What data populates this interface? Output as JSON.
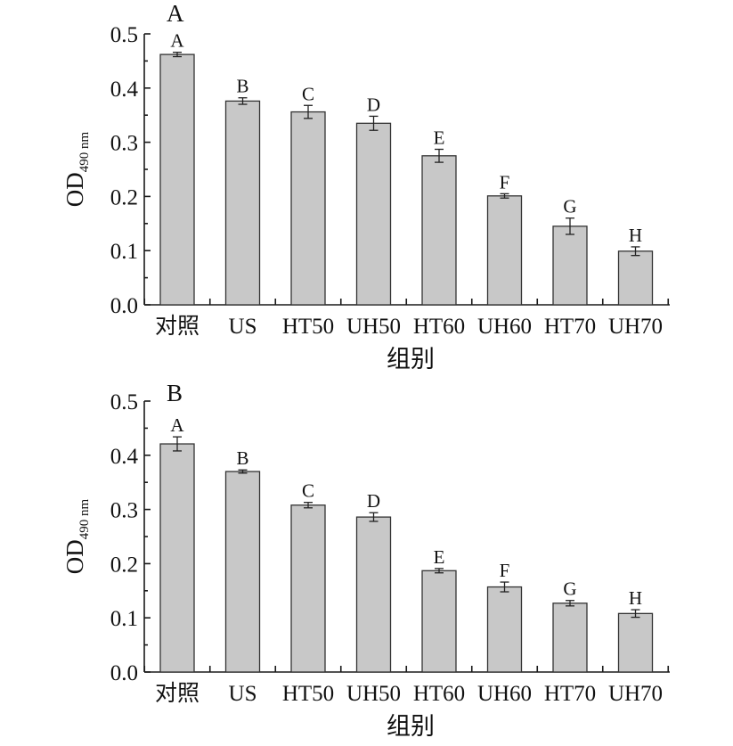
{
  "chart_data": [
    {
      "type": "bar",
      "panel_label": "A",
      "categories": [
        "对照",
        "US",
        "HT50",
        "UH50",
        "HT60",
        "UH60",
        "HT70",
        "UH70"
      ],
      "values": [
        0.462,
        0.376,
        0.356,
        0.335,
        0.275,
        0.201,
        0.145,
        0.099
      ],
      "errors": [
        0.004,
        0.006,
        0.012,
        0.013,
        0.012,
        0.004,
        0.015,
        0.008
      ],
      "significance": [
        "A",
        "B",
        "C",
        "D",
        "E",
        "F",
        "G",
        "H"
      ],
      "xlabel": "组别",
      "ylabel": {
        "main": "OD",
        "sub": "490 nm"
      },
      "ylim": [
        0,
        0.5
      ],
      "yticks": [
        "0.0",
        "0.1",
        "0.2",
        "0.3",
        "0.4",
        "0.5"
      ],
      "bar_color": "#c8c8c8",
      "grid": false
    },
    {
      "type": "bar",
      "panel_label": "B",
      "categories": [
        "对照",
        "US",
        "HT50",
        "UH50",
        "HT60",
        "UH60",
        "HT70",
        "UH70"
      ],
      "values": [
        0.421,
        0.37,
        0.308,
        0.286,
        0.187,
        0.157,
        0.127,
        0.108
      ],
      "errors": [
        0.013,
        0.003,
        0.005,
        0.008,
        0.004,
        0.009,
        0.005,
        0.007
      ],
      "significance": [
        "A",
        "B",
        "C",
        "D",
        "E",
        "F",
        "G",
        "H"
      ],
      "xlabel": "组别",
      "ylabel": {
        "main": "OD",
        "sub": "490 nm"
      },
      "ylim": [
        0,
        0.5
      ],
      "yticks": [
        "0.0",
        "0.1",
        "0.2",
        "0.3",
        "0.4",
        "0.5"
      ],
      "bar_color": "#c8c8c8",
      "grid": false
    }
  ]
}
